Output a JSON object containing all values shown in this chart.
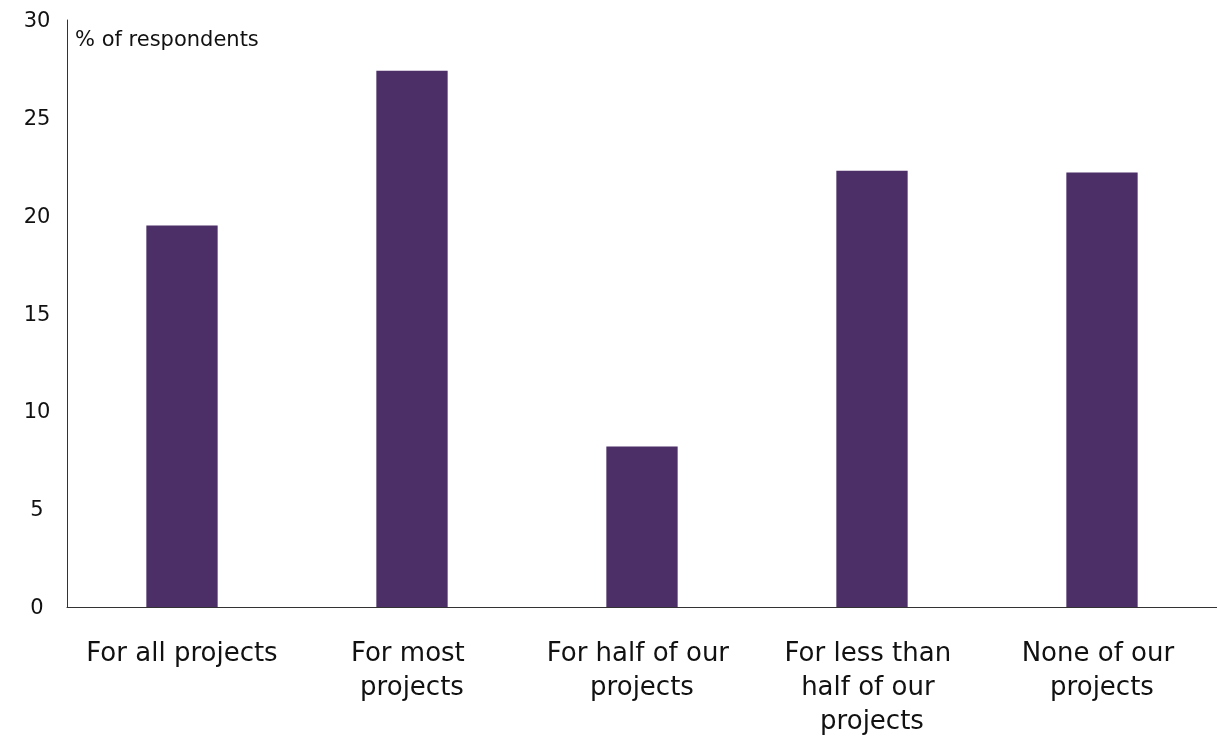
{
  "chart_data": {
    "type": "bar",
    "ylabel": "% of respondents",
    "categories": [
      "For all projects",
      "For most projects",
      "For half of our projects",
      "For less than half of our projects",
      "None of our projects"
    ],
    "values": [
      19.5,
      27.4,
      8.2,
      22.3,
      22.2
    ],
    "color": "#4b2f66",
    "ylim": [
      0,
      30
    ],
    "yticks": [
      0,
      5,
      10,
      15,
      20,
      25,
      30
    ],
    "grid": false
  }
}
